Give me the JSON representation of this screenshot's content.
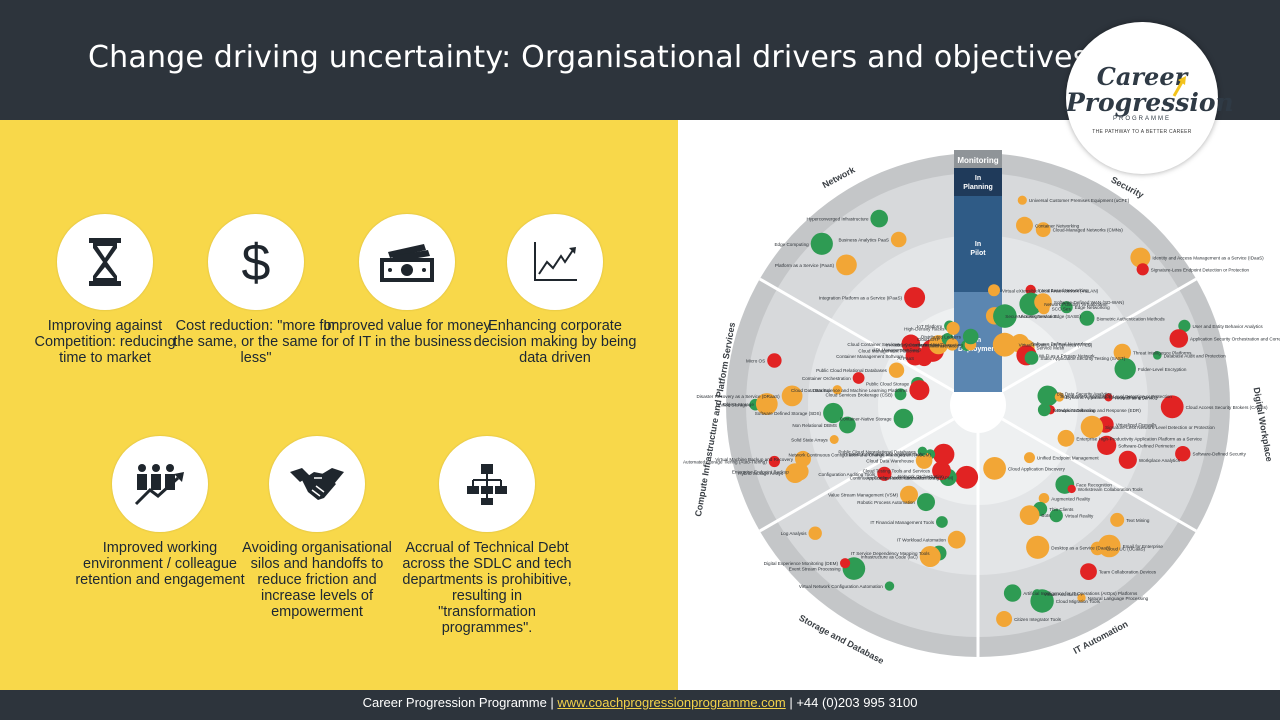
{
  "title": "Change driving uncertainty: Organisational drivers and objectives",
  "logo": {
    "line1": "Career",
    "line2": "Progression",
    "line3": "PROGRAMME",
    "tagline": "THE PATHWAY TO A BETTER CAREER"
  },
  "drivers": [
    {
      "icon": "hourglass-icon",
      "label": "Improving against Competition: reducing time to market"
    },
    {
      "icon": "dollar-icon",
      "label": "Cost reduction: \"more for the same, or the same for less\""
    },
    {
      "icon": "cash-icon",
      "label": "Improved value for money of IT in the business"
    },
    {
      "icon": "trend-chart-icon",
      "label": "Enhancing corporate decision making by being data driven"
    },
    {
      "icon": "team-growth-icon",
      "label": "Improved working environment / colleague retention and engagement"
    },
    {
      "icon": "handshake-icon",
      "label": "Avoiding organisational silos and handoffs to reduce friction and increase levels of empowerment"
    },
    {
      "icon": "org-chart-icon",
      "label": "Accrual of Technical Debt across the SDLC and tech departments is prohibitive, resulting in \"transformation programmes\"."
    }
  ],
  "radar": {
    "monitoring": "Monitoring",
    "rings": [
      "In Planning",
      "In Pilot",
      "In Deployment"
    ],
    "sectors": [
      "Network",
      "Security",
      "Digital Workplace",
      "IT Automation",
      "Storage and Database",
      "Compute Infrastructure and Platform Services"
    ],
    "items": [
      "Virtual eXtensible Local Area Network (VXLAN)",
      "Secure Access Service Edge (SASE)",
      "Universal Customer Premises Equipment (uCPE)",
      "Container Networking",
      "Microsegmentation",
      "Cloud-Managed Networks (CMNs)",
      "Virtual Private LAN Services (VPLS)",
      "Intent Based Networking",
      "Network Function Virtualization",
      "Software-Defined WAN (SD-WAN)",
      "SCO Ses",
      "Software Defined Networking",
      "Service Mesh",
      "Edge Networking",
      "Wi-Fi as a Primary Network",
      "Identity and Access Management as a Service (IDaaS)",
      "Static Application Security Testing (SAST)",
      "Signature-Less Endpoint Detection or Protection",
      "Biometric Authentication Methods",
      "Threat Intelligence Platforms",
      "User and Entity Behavior Analytics",
      "Application Security Orchestration and Correlation (ASOC)",
      "Database Audit and Protection",
      "Folder-Level Encryption",
      "Big Data Security Analytics",
      "Signatureless Application-Level Detection or Protection",
      "Dynamic Application Security Testing (DAST)",
      "Firewall as a Service",
      "Cloud Access Security Brokers (CASBs)",
      "Endpoint Detection and Response (EDR)",
      "Network Sandboxing",
      "Virtualized Firewalls",
      "Signature-Less Network-Level Detection or Protection",
      "Software-Defined Security",
      "Software-Defined Perimeter",
      "Workplace Analytics",
      "Enterprise High-Productivity Application Platform as a Service",
      "Citizen Integrator Tools",
      "Text Mining",
      "Face Recognition",
      "Workstream Collaboration Tools",
      "Unified Endpoint Management",
      "Email for Enterprise",
      "Cloud UC (UCaaS)",
      "Augmented Reality",
      "Virtual Reality",
      "Team Collaboration Devices",
      "Thin Clients",
      "Natural Language Processing",
      "Bots",
      "Desktop as a Service (DaaS)",
      "Virtual Assistants",
      "Cloud Migration Tools",
      "Cloud Application Discovery",
      "Artificial Intelligence for IT Operations (AIOps) Platforms",
      "Log Analysis",
      "Configuration Auditing Tools",
      "IT Workload Automation",
      "Application Performance Monitoring (APM)",
      "IT Service Dependency Mapping Tools",
      "IT Financial Management Tools",
      "Infrastructure as Code (IaC)",
      "Network Orchestration",
      "Continuous Configuration Automation Tools",
      "Virtual Network Configuration Automation",
      "Robotic Process Automation",
      "Cloud Testing Tools and Services",
      "Network Continuous Configuration and Change Management (NCCM)",
      "Event Stream Processing",
      "Value Stream Management (VSM)",
      "Digital Experience Monitoring (DEM)",
      "IT Event Correlation and Analysis Tools",
      "Cloud Data Warehouse",
      "Public Cloud Nonrelational Databases",
      "Public Cloud Storage",
      "Public Cloud Relational Databases",
      "Hybrid Storage Arrays",
      "Enterprise Endpoint Backup",
      "Virtual Machine Backup and Recovery",
      "Automated Storage Tiering (Auto-Tiering)",
      "Solid State Arrays",
      "Container-Native Storage",
      "Non Relational DBMS",
      "Software Defined Storage (SDS)",
      "Unified Storage",
      "Object Storage",
      "Disaster Recovery as a Service (DRaaS)",
      "Cloud Data Backup",
      "Cloud Services Brokerage (CSB)",
      "Container Orchestration",
      "Micro OS",
      "Data Science and Machine Learning Platforms",
      "Microservices",
      "Serverless Computing",
      "Distributed Ledgers",
      "Container Management Software",
      "Cloud Container Services",
      "AI PaaS",
      "Edge Computing",
      "Platform as a Service (PaaS)",
      "Cloud Management Platforms",
      "API Management PaaS",
      "OS Containers",
      "Integration Platform as a Service (iPaaS)",
      "Hyperconverged Infrastructure",
      "Business Analytics PaaS",
      "Cloud ERP",
      "In-Memory Computing (IMC)",
      "IoT Platform",
      "High-Density Racks"
    ]
  },
  "footer": {
    "org": "Career Progression Programme",
    "sep1": " | ",
    "link": "www.coachprogressionprogramme.com",
    "sep2": " | ",
    "phone": "+44 (0)203 995 3100"
  }
}
